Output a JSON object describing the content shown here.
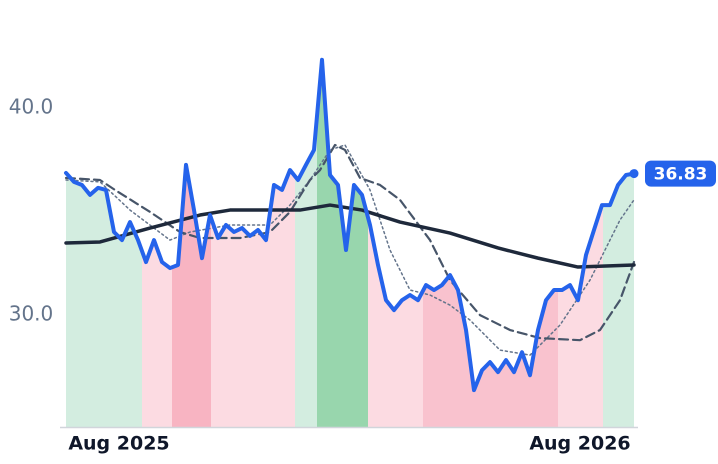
{
  "chart_data": {
    "type": "line",
    "xlim": [
      0,
      71
    ],
    "ylim": [
      24.6,
      44.0
    ],
    "xticks": [
      {
        "value": 6.625,
        "label": "Aug 2025"
      },
      {
        "value": 64.25,
        "label": "Aug 2026"
      }
    ],
    "yticks": [
      {
        "value": 30,
        "label": "30.0"
      },
      {
        "value": 40,
        "label": "40.0"
      }
    ],
    "bands": [
      {
        "start": 0,
        "end": 9.5,
        "color": "#d3ede0"
      },
      {
        "start": 9.5,
        "end": 13.25,
        "color": "#fcdbe2"
      },
      {
        "start": 13.25,
        "end": 18.125,
        "color": "#f8b4c2"
      },
      {
        "start": 18.125,
        "end": 28.625,
        "color": "#fcdbe2"
      },
      {
        "start": 28.625,
        "end": 31.375,
        "color": "#d3ede0"
      },
      {
        "start": 31.375,
        "end": 37.75,
        "color": "#98d6ad"
      },
      {
        "start": 37.75,
        "end": 44.625,
        "color": "#fcdbe2"
      },
      {
        "start": 44.625,
        "end": 61.5,
        "color": "#f9c2ce"
      },
      {
        "start": 61.5,
        "end": 67.125,
        "color": "#fcdbe2"
      },
      {
        "start": 67.125,
        "end": 71,
        "color": "#d3ede0"
      }
    ],
    "series": [
      {
        "style": "dotted",
        "color": "#64748b",
        "x": [
          0,
          4.25,
          8,
          13,
          15.5,
          20.5,
          25.5,
          28,
          30.5,
          33,
          34.875,
          38,
          40.5,
          43,
          45.5,
          48,
          50.5,
          54.25,
          58,
          61.75,
          65.5,
          69.25,
          71
        ],
        "values": [
          36.52,
          36.43,
          35.07,
          33.62,
          34.01,
          34.35,
          34.35,
          35.31,
          36.52,
          37.97,
          38.21,
          36.04,
          33.14,
          31.21,
          30.97,
          30.48,
          29.76,
          28.31,
          28.07,
          29.52,
          31.69,
          34.59,
          35.56
        ]
      },
      {
        "style": "dashed",
        "color": "#475569",
        "x": [
          0,
          4.25,
          6.125,
          10.5,
          14.25,
          16.75,
          21.75,
          25.5,
          28,
          30.5,
          31.75,
          33.625,
          34.875,
          36.75,
          39.25,
          41.75,
          45.5,
          48,
          51.75,
          55.5,
          59.25,
          64.25,
          66.75,
          69.25,
          71
        ],
        "values": [
          36.62,
          36.52,
          36.04,
          34.98,
          34.01,
          33.72,
          33.72,
          34.01,
          34.98,
          36.52,
          37.0,
          38.21,
          37.97,
          36.62,
          36.28,
          35.56,
          33.62,
          31.69,
          30.0,
          29.28,
          28.89,
          28.79,
          29.28,
          30.72,
          32.56
        ]
      },
      {
        "style": "solid",
        "width": 3.5,
        "color": "#1e293b",
        "x": [
          0,
          4.25,
          10.5,
          16.75,
          20.5,
          29.25,
          33,
          37,
          41.75,
          48,
          54,
          59,
          64,
          71
        ],
        "values": [
          33.48,
          33.53,
          34.2,
          34.83,
          35.07,
          35.07,
          35.31,
          35.07,
          34.49,
          33.96,
          33.24,
          32.75,
          32.32,
          32.42
        ]
      },
      {
        "style": "solid",
        "width": 4,
        "color": "#2563eb",
        "main": true,
        "x": [
          0,
          1,
          2,
          3,
          4,
          5,
          6,
          7,
          8,
          9,
          10,
          11,
          12,
          13,
          14,
          15,
          16,
          17,
          18,
          19,
          20,
          21,
          22,
          23,
          24,
          25,
          26,
          27,
          28,
          29,
          30,
          31,
          32,
          33,
          34,
          35,
          36,
          37,
          38,
          39,
          40,
          41,
          42,
          43,
          44,
          45,
          46,
          47,
          48,
          49,
          50,
          51,
          52,
          53,
          54,
          55,
          56,
          57,
          58,
          59,
          60,
          61,
          62,
          63,
          64,
          65,
          66,
          67,
          68,
          69,
          70,
          71
        ],
        "values": [
          36.86,
          36.43,
          36.28,
          35.8,
          36.14,
          36.04,
          34.01,
          33.62,
          34.49,
          33.62,
          32.56,
          33.62,
          32.56,
          32.27,
          32.42,
          37.25,
          35.07,
          32.75,
          34.83,
          33.72,
          34.35,
          34.01,
          34.2,
          33.82,
          34.11,
          33.62,
          36.28,
          36.04,
          37.0,
          36.52,
          37.25,
          37.97,
          42.32,
          36.76,
          36.28,
          33.14,
          36.28,
          35.8,
          34.35,
          32.42,
          30.72,
          30.24,
          30.72,
          30.97,
          30.72,
          31.45,
          31.21,
          31.45,
          31.93,
          31.21,
          29.28,
          26.38,
          27.34,
          27.73,
          27.25,
          27.83,
          27.25,
          28.21,
          27.1,
          29.28,
          30.72,
          31.21,
          31.21,
          31.45,
          30.72,
          32.9,
          34.11,
          35.31,
          35.31,
          36.28,
          36.76,
          36.83
        ]
      }
    ]
  }
}
